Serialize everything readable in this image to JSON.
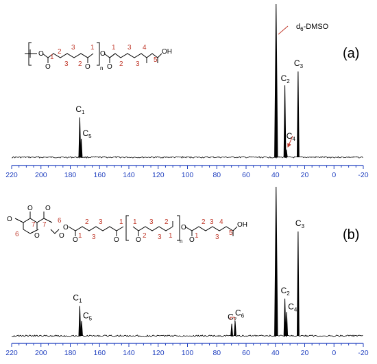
{
  "chart_data": [
    {
      "type": "line",
      "panel": "(a)",
      "xlim": [
        220,
        -20
      ],
      "xticks": [
        220,
        200,
        180,
        160,
        140,
        120,
        100,
        80,
        60,
        40,
        20,
        0,
        -20
      ],
      "annotation": {
        "text": "d",
        "sub": "6",
        "suffix": "-DMSO",
        "ppm": 39.5
      },
      "peaks": [
        {
          "label": "C",
          "sub": "1",
          "ppm": 173.5,
          "rel_height": 0.26
        },
        {
          "label": "C",
          "sub": "5",
          "ppm": 172.5,
          "rel_height": 0.12
        },
        {
          "label": "",
          "sub": "",
          "ppm": 39.5,
          "rel_height": 1.0
        },
        {
          "label": "C",
          "sub": "2",
          "ppm": 33.5,
          "rel_height": 0.47
        },
        {
          "label": "C",
          "sub": "4",
          "ppm": 32.5,
          "rel_height": 0.05
        },
        {
          "label": "C",
          "sub": "3",
          "ppm": 24.5,
          "rel_height": 0.56
        }
      ]
    },
    {
      "type": "line",
      "panel": "(b)",
      "xlim": [
        220,
        -20
      ],
      "xticks": [
        220,
        200,
        180,
        160,
        140,
        120,
        100,
        80,
        60,
        40,
        20,
        0,
        -20
      ],
      "peaks": [
        {
          "label": "C",
          "sub": "1",
          "ppm": 173.5,
          "rel_height": 0.2
        },
        {
          "label": "C",
          "sub": "5",
          "ppm": 172.3,
          "rel_height": 0.1
        },
        {
          "label": "C",
          "sub": "7",
          "ppm": 69.8,
          "rel_height": 0.08
        },
        {
          "label": "C",
          "sub": "6",
          "ppm": 67.5,
          "rel_height": 0.1
        },
        {
          "label": "",
          "sub": "",
          "ppm": 39.5,
          "rel_height": 1.0
        },
        {
          "label": "C",
          "sub": "2",
          "ppm": 33.5,
          "rel_height": 0.25
        },
        {
          "label": "C",
          "sub": "4",
          "ppm": 32.3,
          "rel_height": 0.16
        },
        {
          "label": "C",
          "sub": "3",
          "ppm": 24.5,
          "rel_height": 0.7
        }
      ]
    }
  ],
  "structures": {
    "a": {
      "repeat_sub": "n",
      "end_group": "OH",
      "atoms": [
        "O",
        "O",
        "O",
        "O",
        "O"
      ],
      "numbers": [
        "1",
        "2",
        "3",
        "3",
        "2",
        "1",
        "1",
        "2",
        "3",
        "3",
        "4",
        "5"
      ]
    },
    "b": {
      "repeat_sub": "n",
      "end_group": "OH",
      "atoms": [
        "O",
        "O",
        "O",
        "O",
        "O",
        "O",
        "O",
        "O",
        "O",
        "O",
        "O"
      ],
      "numbers": [
        "6",
        "7",
        "7",
        "6",
        "1",
        "2",
        "3",
        "3",
        "1",
        "1",
        "2",
        "3",
        "3",
        "2",
        "1",
        "1",
        "2",
        "3",
        "4",
        "3",
        "5"
      ]
    }
  },
  "colors": {
    "axis": "#1f3fbf",
    "numbers": "#c0392b",
    "arrow": "#c0392b",
    "spectrum": "#000000"
  }
}
